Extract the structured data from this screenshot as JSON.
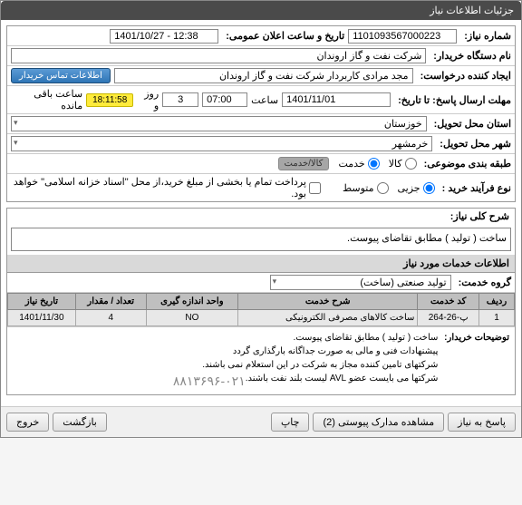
{
  "window": {
    "title": "جزئیات اطلاعات نیاز"
  },
  "fields": {
    "need_number_label": "شماره نیاز:",
    "need_number": "1101093567000223",
    "announce_label": "تاریخ و ساعت اعلان عمومی:",
    "announce_value": "1401/10/27 - 12:38",
    "buyer_label": "نام دستگاه خریدار:",
    "buyer_value": "شرکت نفت و گاز اروندان",
    "requester_label": "ایجاد کننده درخواست:",
    "requester_value": "مجد مرادی کاربردار شرکت نفت و گاز اروندان",
    "contact_btn": "اطلاعات تماس خریدار",
    "deadline_label": "مهلت ارسال پاسخ: تا تاریخ:",
    "deadline_date": "1401/11/01",
    "time_label": "ساعت",
    "deadline_time": "07:00",
    "remain_days": "3",
    "days_label": "روز و",
    "countdown": "18:11:58",
    "remain_label": "ساعت باقی مانده",
    "province_label": "استان محل تحویل:",
    "province_value": "خوزستان",
    "city_label": "شهر محل تحویل:",
    "city_value": "خرمشهر",
    "category_label": "طبقه بندی موضوعی:",
    "cat_goods": "کالا",
    "cat_service": "خدمت",
    "cat_goods_service": "کالا/خدمت",
    "process_label": "نوع فرآیند خرید :",
    "proc_partial": "جزیی",
    "proc_medium": "متوسط",
    "payment_check": "پرداخت تمام یا بخشی از مبلغ خرید،از محل \"اسناد خزانه اسلامی\" خواهد بود.",
    "desc_label": "شرح کلی نیاز:",
    "desc_value": "ساخت ( تولید ) مطابق تقاضای پیوست.",
    "services_header": "اطلاعات خدمات مورد نیاز",
    "service_group_label": "گروه خدمت:",
    "service_group_value": "تولید صنعتی (ساخت)"
  },
  "table": {
    "headers": {
      "row": "ردیف",
      "code": "کد خدمت",
      "desc": "شرح خدمت",
      "unit": "واحد اندازه گیری",
      "qty": "تعداد / مقدار",
      "date": "تاریخ نیاز"
    },
    "row1": {
      "num": "1",
      "code": "پ-26-264",
      "desc": "ساخت کالاهای مصرفی الکترونیکی",
      "unit": "NO",
      "qty": "4",
      "date": "1401/11/30"
    }
  },
  "comments": {
    "label": "توضیحات خریدار:",
    "line1": "ساخت ( تولید ) مطابق تقاضای پیوست.",
    "line2": "پیشنهادات فنی و مالی به صورت جداگانه بارگذاری گردد",
    "line3": "شرکتهای تامین کننده مجاز به شرکت در این استعلام نمی باشند.",
    "line4": "شرکتها می بایست عضو AVL لیست بلند نفت باشند.",
    "phone": "۸۸۱۳۶۹۶-۰۲۱"
  },
  "footer": {
    "reply": "پاسخ به نیاز",
    "attachments": "مشاهده مدارک پیوستی (2)",
    "print": "چاپ",
    "return": "بازگشت",
    "exit": "خروج"
  }
}
